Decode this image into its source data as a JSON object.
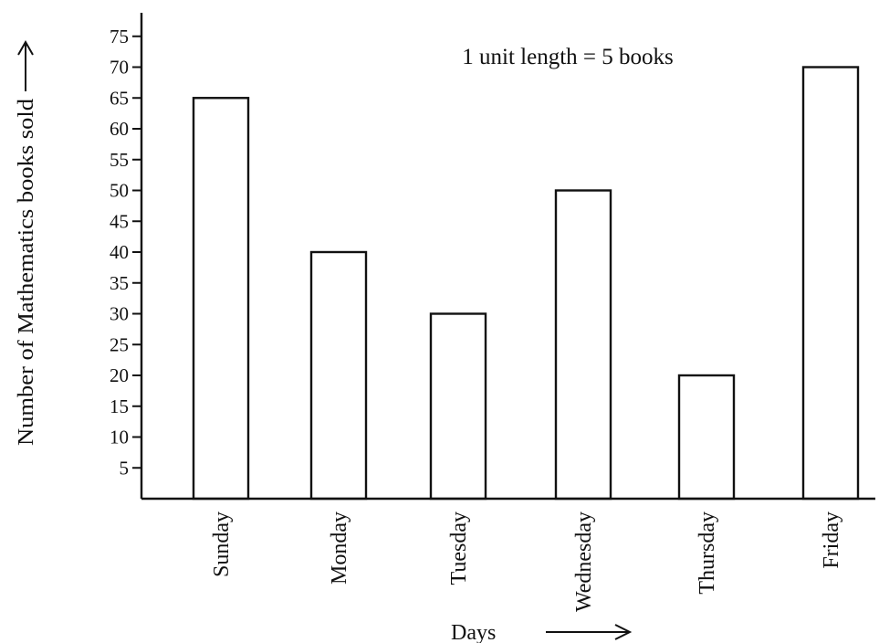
{
  "chart_data": {
    "type": "bar",
    "categories": [
      "Sunday",
      "Monday",
      "Tuesday",
      "Wednesday",
      "Thursday",
      "Friday"
    ],
    "values": [
      65,
      40,
      30,
      50,
      20,
      70
    ],
    "xlabel": "Days",
    "ylabel": "Number of Mathematics books sold",
    "ylim": [
      0,
      75
    ],
    "yticks": [
      5,
      10,
      15,
      20,
      25,
      30,
      35,
      40,
      45,
      50,
      55,
      60,
      65,
      70,
      75
    ],
    "annotation": "1 unit length = 5 books",
    "grid": false,
    "bar_color": "#ffffff",
    "line_color": "#111111"
  }
}
